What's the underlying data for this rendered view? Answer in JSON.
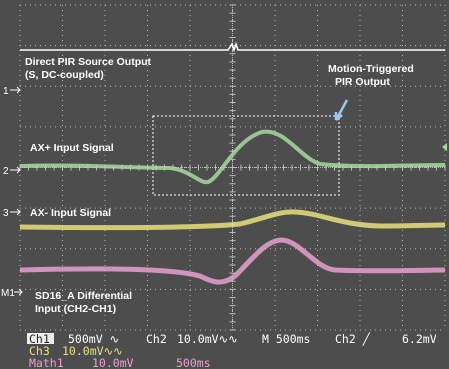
{
  "labels": {
    "source": [
      "Direct PIR Source Output",
      "(S, DC-coupled)"
    ],
    "motion": [
      "Motion-Triggered",
      "PIR Output"
    ],
    "axplus": "AX+ Input Signal",
    "axminus": "AX- Input Signal",
    "sd16": [
      "SD16_A Differential",
      "Input (CH2-CH1)"
    ]
  },
  "markers": [
    "1",
    "2",
    "3",
    "M1"
  ],
  "status": {
    "row1": [
      "Ch1",
      "500mV ∿",
      "Ch2",
      "10.0mV∿∿",
      "M 500ms",
      "Ch2 ╱",
      "6.2mV"
    ],
    "row2": [
      "Ch3",
      "10.0mV∿∿"
    ],
    "row3": [
      "Math1",
      "10.0mV",
      "500ms"
    ]
  }
}
